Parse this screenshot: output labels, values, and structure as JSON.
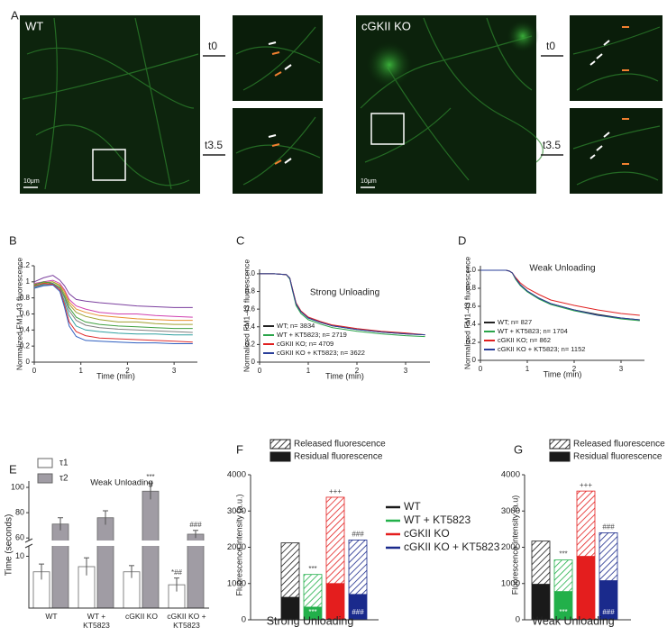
{
  "images": {
    "panel": "A",
    "left_label": "WT",
    "right_label": "cGKII KO",
    "t0": "t0",
    "t35": "t3.5",
    "scale_bar": "10μm"
  },
  "chart_data": [
    {
      "panel": "B",
      "type": "line",
      "xlabel": "Time (min)",
      "ylabel": "Normalized FM1-43 fluorescence",
      "x": [
        0,
        0.2,
        0.4,
        0.55,
        0.65,
        0.75,
        0.9,
        1.1,
        1.4,
        1.8,
        2.2,
        2.6,
        3,
        3.4
      ],
      "series": [
        {
          "color": "#7b3f9e",
          "values": [
            1.0,
            1.05,
            1.08,
            1.02,
            0.95,
            0.85,
            0.78,
            0.76,
            0.74,
            0.72,
            0.7,
            0.69,
            0.68,
            0.68
          ]
        },
        {
          "color": "#d040b0",
          "values": [
            0.98,
            1.0,
            1.02,
            0.98,
            0.9,
            0.78,
            0.7,
            0.66,
            0.62,
            0.6,
            0.6,
            0.58,
            0.57,
            0.56
          ]
        },
        {
          "color": "#e89030",
          "values": [
            0.95,
            0.98,
            1.0,
            0.96,
            0.88,
            0.75,
            0.66,
            0.62,
            0.58,
            0.56,
            0.54,
            0.53,
            0.52,
            0.52
          ]
        },
        {
          "color": "#a0a030",
          "values": [
            0.97,
            0.99,
            1.0,
            0.95,
            0.85,
            0.72,
            0.62,
            0.57,
            0.53,
            0.5,
            0.5,
            0.48,
            0.47,
            0.47
          ]
        },
        {
          "color": "#40a040",
          "values": [
            0.96,
            1.0,
            0.98,
            0.93,
            0.82,
            0.68,
            0.56,
            0.5,
            0.47,
            0.45,
            0.44,
            0.43,
            0.42,
            0.42
          ]
        },
        {
          "color": "#808080",
          "values": [
            0.93,
            0.96,
            0.97,
            0.92,
            0.8,
            0.64,
            0.52,
            0.46,
            0.43,
            0.41,
            0.4,
            0.39,
            0.38,
            0.37
          ]
        },
        {
          "color": "#30a0a0",
          "values": [
            0.94,
            0.97,
            0.98,
            0.9,
            0.76,
            0.58,
            0.45,
            0.4,
            0.38,
            0.36,
            0.35,
            0.35,
            0.34,
            0.34
          ]
        },
        {
          "color": "#e03030",
          "values": [
            0.95,
            0.98,
            0.97,
            0.9,
            0.72,
            0.5,
            0.38,
            0.33,
            0.3,
            0.29,
            0.28,
            0.27,
            0.26,
            0.25
          ]
        },
        {
          "color": "#3060c0",
          "values": [
            0.92,
            0.95,
            0.96,
            0.88,
            0.68,
            0.45,
            0.32,
            0.27,
            0.26,
            0.25,
            0.24,
            0.24,
            0.23,
            0.23
          ]
        }
      ],
      "xlim": [
        0,
        3.5
      ],
      "ylim": [
        0,
        1.2
      ],
      "xticks": [
        0,
        1,
        2,
        3
      ],
      "yticks": [
        0,
        0.2,
        0.4,
        0.6,
        0.8,
        1,
        1.2
      ]
    },
    {
      "panel": "C",
      "type": "line",
      "title": "Strong Unloading",
      "xlabel": "Time (min)",
      "ylabel": "Normalized FM1-43 fluorescence",
      "x": [
        0,
        0.3,
        0.55,
        0.62,
        0.68,
        0.75,
        0.85,
        1.0,
        1.25,
        1.5,
        2,
        2.5,
        3,
        3.4
      ],
      "series": [
        {
          "name": "WT; n= 3834",
          "color": "#222222",
          "values": [
            1,
            1,
            0.99,
            0.95,
            0.82,
            0.66,
            0.57,
            0.5,
            0.45,
            0.41,
            0.37,
            0.34,
            0.32,
            0.31
          ]
        },
        {
          "name": "WT + KT5823; n= 2719",
          "color": "#2aa44a",
          "values": [
            1,
            1,
            0.99,
            0.94,
            0.8,
            0.64,
            0.55,
            0.48,
            0.43,
            0.39,
            0.35,
            0.32,
            0.3,
            0.29
          ]
        },
        {
          "name": "cGKII KO; n= 4709",
          "color": "#e02020",
          "values": [
            1,
            1,
            0.99,
            0.95,
            0.82,
            0.67,
            0.58,
            0.51,
            0.46,
            0.42,
            0.38,
            0.35,
            0.33,
            0.31
          ]
        },
        {
          "name": "cGKII KO + KT5823; n= 3622",
          "color": "#2a3f9a",
          "values": [
            1,
            1,
            0.99,
            0.95,
            0.81,
            0.66,
            0.57,
            0.5,
            0.45,
            0.41,
            0.37,
            0.34,
            0.32,
            0.31
          ]
        }
      ],
      "xlim": [
        0,
        3.5
      ],
      "ylim": [
        0,
        1.05
      ],
      "xticks": [
        0,
        1,
        2,
        3
      ],
      "yticks": [
        0,
        0.2,
        0.4,
        0.6,
        0.8,
        {
          "value": 1,
          "label": "1.0"
        }
      ]
    },
    {
      "panel": "D",
      "type": "line",
      "title": "Weak Unloading",
      "xlabel": "Time (min)",
      "ylabel": "Normalized FM1-43 fluorescence",
      "x": [
        0,
        0.3,
        0.55,
        0.62,
        0.68,
        0.75,
        0.85,
        1.0,
        1.25,
        1.5,
        2,
        2.5,
        3,
        3.4
      ],
      "series": [
        {
          "name": "WT; n= 827",
          "color": "#222222",
          "values": [
            1,
            1,
            1,
            0.99,
            0.97,
            0.91,
            0.84,
            0.77,
            0.69,
            0.63,
            0.56,
            0.51,
            0.47,
            0.45
          ]
        },
        {
          "name": "WT + KT5823; n= 1704",
          "color": "#2aa44a",
          "values": [
            1,
            1,
            1,
            0.99,
            0.97,
            0.9,
            0.83,
            0.76,
            0.68,
            0.62,
            0.55,
            0.5,
            0.46,
            0.44
          ]
        },
        {
          "name": "cGKII KO; n= 862",
          "color": "#e02020",
          "values": [
            1,
            1,
            1,
            0.99,
            0.97,
            0.92,
            0.86,
            0.8,
            0.73,
            0.67,
            0.61,
            0.56,
            0.52,
            0.5
          ]
        },
        {
          "name": "cGKII KO + KT5823; n= 1152",
          "color": "#2a3f9a",
          "values": [
            1,
            1,
            1,
            0.99,
            0.97,
            0.91,
            0.84,
            0.77,
            0.69,
            0.63,
            0.56,
            0.5,
            0.47,
            0.45
          ]
        }
      ],
      "xlim": [
        0,
        3.5
      ],
      "ylim": [
        0,
        1.05
      ],
      "xticks": [
        0,
        1,
        2,
        3
      ],
      "yticks": [
        0,
        0.2,
        0.4,
        0.6,
        0.8,
        {
          "value": 1,
          "label": "1.0"
        }
      ]
    },
    {
      "panel": "E",
      "type": "bar",
      "title": "Weak Unloading",
      "ylabel": "Time (seconds)",
      "categories": [
        "WT",
        "WT + KT5823",
        "cGKII KO",
        "cGKII KO + KT5823"
      ],
      "series": [
        {
          "name": "τ1",
          "color": "#ffffff",
          "values": [
            7,
            8,
            7,
            4.5
          ],
          "errors": [
            1.5,
            1.7,
            1.2,
            1.3
          ],
          "annotations": [
            null,
            null,
            null,
            "*##"
          ]
        },
        {
          "name": "τ2",
          "color": "#a09ca4",
          "values": [
            71,
            76,
            97,
            63
          ],
          "errors": [
            5,
            5.5,
            6.5,
            3
          ],
          "annotations": [
            null,
            null,
            "***",
            "###"
          ]
        }
      ],
      "ylim": [
        0,
        105
      ],
      "ybreak": [
        12,
        58
      ],
      "yticks": [
        10,
        60,
        80,
        100
      ]
    },
    {
      "panel": "F",
      "type": "stacked_bar",
      "xlabel": "Strong Unloading",
      "ylabel": "Fluorescence intensity (a.u.)",
      "categories": [
        "WT",
        "WT + KT5823",
        "cGKII KO",
        "cGKII KO + KT5823"
      ],
      "colors": [
        "#1a1a1a",
        "#22b04a",
        "#e41e1e",
        "#1a2a8c"
      ],
      "series": [
        {
          "name": "Residual fluorescence",
          "values": [
            620,
            350,
            1000,
            700
          ],
          "annotations": [
            null,
            "***",
            null,
            "###"
          ]
        },
        {
          "name": "Released fluorescence",
          "hatch": true,
          "values": [
            1500,
            900,
            2380,
            1500
          ],
          "annotations": [
            null,
            "***",
            "+++",
            "###"
          ]
        }
      ],
      "ylim": [
        0,
        4000
      ],
      "yticks": [
        0,
        1000,
        2000,
        3000,
        4000
      ]
    },
    {
      "panel": "G",
      "type": "stacked_bar",
      "xlabel": "Weak Unloading",
      "ylabel": "Fluorescence intensity (a.u)",
      "colors": [
        "#1a1a1a",
        "#22b04a",
        "#e41e1e",
        "#1a2a8c"
      ],
      "series": [
        {
          "name": "Residual fluorescence",
          "values": [
            980,
            780,
            1750,
            1080
          ],
          "annotations": [
            null,
            "***",
            null,
            "###"
          ]
        },
        {
          "name": "Released fluorescence",
          "hatch": true,
          "values": [
            1190,
            870,
            1800,
            1320
          ],
          "annotations": [
            null,
            "***",
            "+++",
            "###"
          ]
        }
      ],
      "ylim": [
        0,
        4000
      ],
      "yticks": [
        0,
        1000,
        2000,
        3000,
        4000
      ]
    }
  ]
}
